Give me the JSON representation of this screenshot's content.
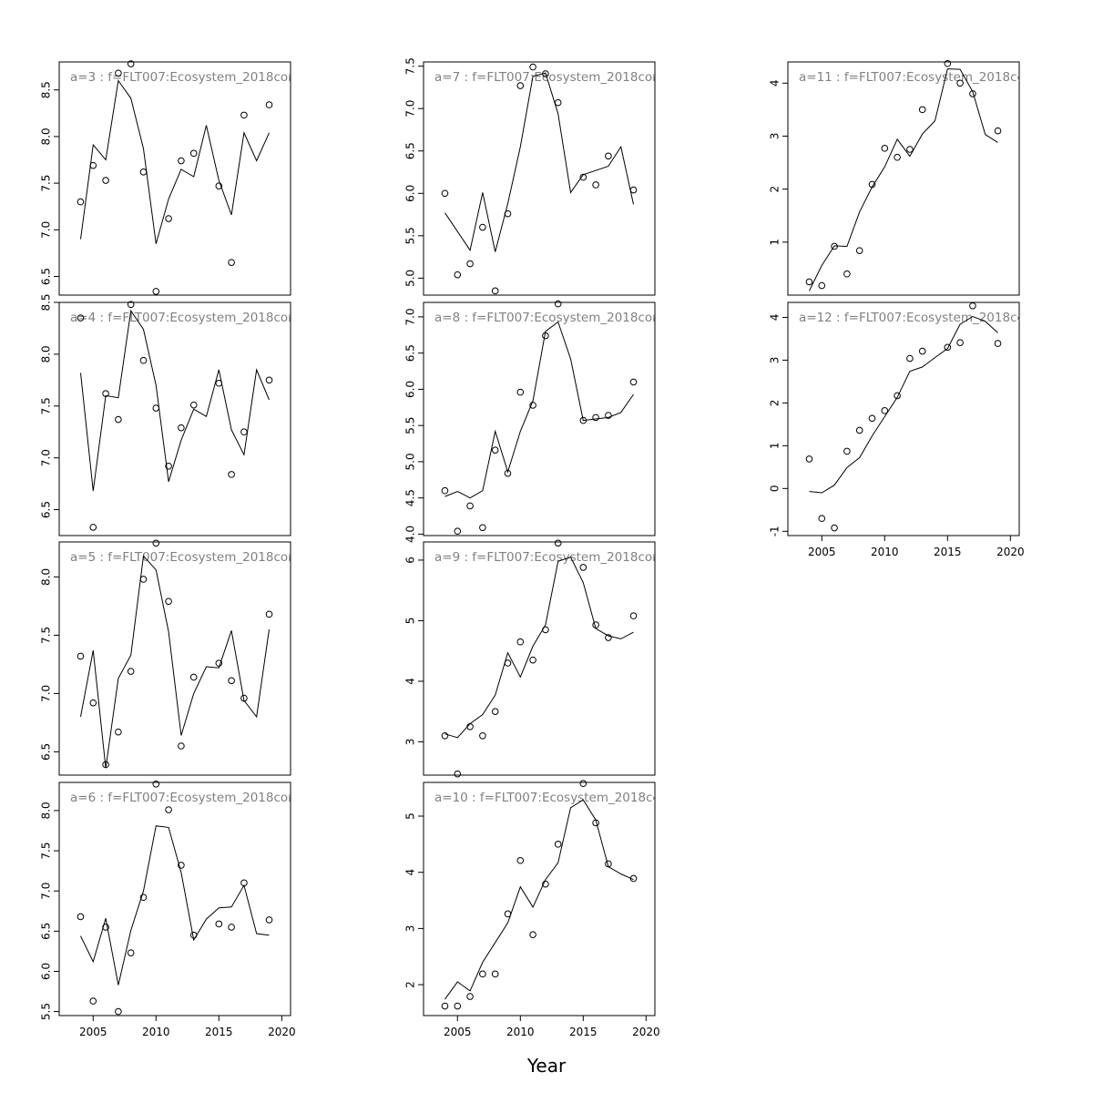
{
  "xlabel": "Year",
  "colors": {
    "axis": "#000000",
    "panel_label": "#808080",
    "line": "#000000",
    "points": "#000000"
  },
  "chart_data": [
    {
      "type": "scatter",
      "title": "a=3 : f=FLT007:Ecosystem_2018cor",
      "ylim": [
        6.3,
        8.8
      ],
      "yticks": [
        6.5,
        7.0,
        7.5,
        8.0,
        8.5
      ],
      "points": [
        [
          2004,
          7.3
        ],
        [
          2005,
          7.69
        ],
        [
          2006,
          7.53
        ],
        [
          2007,
          8.68
        ],
        [
          2008,
          8.78
        ],
        [
          2009,
          7.62
        ],
        [
          2010,
          6.34
        ],
        [
          2011,
          7.12
        ],
        [
          2012,
          7.74
        ],
        [
          2013,
          7.82
        ],
        [
          2015,
          7.47
        ],
        [
          2016,
          6.65
        ],
        [
          2017,
          8.23
        ],
        [
          2019,
          8.34
        ]
      ],
      "line": [
        [
          2004,
          6.9
        ],
        [
          2005,
          7.91
        ],
        [
          2006,
          7.75
        ],
        [
          2007,
          8.6
        ],
        [
          2008,
          8.41
        ],
        [
          2009,
          7.87
        ],
        [
          2010,
          6.85
        ],
        [
          2011,
          7.33
        ],
        [
          2012,
          7.65
        ],
        [
          2013,
          7.57
        ],
        [
          2014,
          8.12
        ],
        [
          2015,
          7.53
        ],
        [
          2016,
          7.16
        ],
        [
          2017,
          8.04
        ],
        [
          2018,
          7.74
        ],
        [
          2019,
          8.04
        ]
      ]
    },
    {
      "type": "scatter",
      "title": "a=4 : f=FLT007:Ecosystem_2018cor",
      "ylim": [
        6.25,
        8.5
      ],
      "yticks": [
        6.5,
        7.0,
        7.5,
        8.0,
        8.5
      ],
      "points": [
        [
          2004,
          8.35
        ],
        [
          2005,
          6.33
        ],
        [
          2006,
          7.62
        ],
        [
          2007,
          7.37
        ],
        [
          2008,
          8.48
        ],
        [
          2009,
          7.94
        ],
        [
          2010,
          7.48
        ],
        [
          2011,
          6.92
        ],
        [
          2012,
          7.29
        ],
        [
          2013,
          7.51
        ],
        [
          2015,
          7.72
        ],
        [
          2016,
          6.84
        ],
        [
          2017,
          7.25
        ],
        [
          2019,
          7.75
        ]
      ],
      "line": [
        [
          2004,
          7.82
        ],
        [
          2005,
          6.68
        ],
        [
          2006,
          7.6
        ],
        [
          2007,
          7.58
        ],
        [
          2008,
          8.42
        ],
        [
          2009,
          8.24
        ],
        [
          2010,
          7.7
        ],
        [
          2011,
          6.77
        ],
        [
          2012,
          7.17
        ],
        [
          2013,
          7.47
        ],
        [
          2014,
          7.4
        ],
        [
          2015,
          7.85
        ],
        [
          2016,
          7.27
        ],
        [
          2017,
          7.03
        ],
        [
          2018,
          7.85
        ],
        [
          2019,
          7.56
        ]
      ]
    },
    {
      "type": "scatter",
      "title": "a=5 : f=FLT007:Ecosystem_2018cor",
      "ylim": [
        6.3,
        8.3
      ],
      "yticks": [
        6.5,
        7.0,
        7.5,
        8.0
      ],
      "points": [
        [
          2004,
          7.32
        ],
        [
          2005,
          6.92
        ],
        [
          2006,
          6.39
        ],
        [
          2007,
          6.67
        ],
        [
          2008,
          7.19
        ],
        [
          2009,
          7.98
        ],
        [
          2010,
          8.29
        ],
        [
          2011,
          7.79
        ],
        [
          2012,
          6.55
        ],
        [
          2013,
          7.14
        ],
        [
          2015,
          7.26
        ],
        [
          2016,
          7.11
        ],
        [
          2017,
          6.96
        ],
        [
          2019,
          7.68
        ]
      ],
      "line": [
        [
          2004,
          6.8
        ],
        [
          2005,
          7.37
        ],
        [
          2006,
          6.36
        ],
        [
          2007,
          7.13
        ],
        [
          2008,
          7.33
        ],
        [
          2009,
          8.18
        ],
        [
          2010,
          8.06
        ],
        [
          2011,
          7.53
        ],
        [
          2012,
          6.64
        ],
        [
          2013,
          7.0
        ],
        [
          2014,
          7.23
        ],
        [
          2015,
          7.22
        ],
        [
          2016,
          7.54
        ],
        [
          2017,
          6.94
        ],
        [
          2018,
          6.8
        ],
        [
          2019,
          7.55
        ]
      ]
    },
    {
      "type": "scatter",
      "title": "a=6 : f=FLT007:Ecosystem_2018cor",
      "ylim": [
        5.45,
        8.35
      ],
      "yticks": [
        5.5,
        6.0,
        6.5,
        7.0,
        7.5,
        8.0
      ],
      "points": [
        [
          2004,
          6.68
        ],
        [
          2005,
          5.63
        ],
        [
          2006,
          6.55
        ],
        [
          2007,
          5.5
        ],
        [
          2008,
          6.23
        ],
        [
          2009,
          6.92
        ],
        [
          2010,
          8.33
        ],
        [
          2011,
          8.01
        ],
        [
          2012,
          7.32
        ],
        [
          2013,
          6.45
        ],
        [
          2015,
          6.59
        ],
        [
          2016,
          6.55
        ],
        [
          2017,
          7.1
        ],
        [
          2019,
          6.64
        ]
      ],
      "line": [
        [
          2004,
          6.44
        ],
        [
          2005,
          6.12
        ],
        [
          2006,
          6.66
        ],
        [
          2007,
          5.83
        ],
        [
          2008,
          6.51
        ],
        [
          2009,
          7.0
        ],
        [
          2010,
          7.81
        ],
        [
          2011,
          7.79
        ],
        [
          2012,
          7.23
        ],
        [
          2013,
          6.39
        ],
        [
          2014,
          6.65
        ],
        [
          2015,
          6.79
        ],
        [
          2016,
          6.8
        ],
        [
          2017,
          7.07
        ],
        [
          2018,
          6.47
        ],
        [
          2019,
          6.45
        ]
      ]
    },
    {
      "type": "scatter",
      "title": "a=7 : f=FLT007:Ecosystem_2018cor",
      "ylim": [
        4.8,
        7.55
      ],
      "yticks": [
        5.0,
        5.5,
        6.0,
        6.5,
        7.0,
        7.5
      ],
      "points": [
        [
          2004,
          6.0
        ],
        [
          2005,
          5.04
        ],
        [
          2006,
          5.17
        ],
        [
          2007,
          5.6
        ],
        [
          2008,
          4.85
        ],
        [
          2009,
          5.76
        ],
        [
          2010,
          7.27
        ],
        [
          2011,
          7.49
        ],
        [
          2012,
          7.41
        ],
        [
          2013,
          7.07
        ],
        [
          2015,
          6.19
        ],
        [
          2016,
          6.1
        ],
        [
          2017,
          6.44
        ],
        [
          2019,
          6.04
        ]
      ],
      "line": [
        [
          2004,
          5.77
        ],
        [
          2005,
          5.55
        ],
        [
          2006,
          5.33
        ],
        [
          2007,
          6.01
        ],
        [
          2008,
          5.31
        ],
        [
          2009,
          5.88
        ],
        [
          2010,
          6.55
        ],
        [
          2011,
          7.38
        ],
        [
          2012,
          7.42
        ],
        [
          2013,
          6.94
        ],
        [
          2014,
          6.01
        ],
        [
          2015,
          6.22
        ],
        [
          2016,
          6.27
        ],
        [
          2017,
          6.32
        ],
        [
          2018,
          6.55
        ],
        [
          2019,
          5.87
        ]
      ]
    },
    {
      "type": "scatter",
      "title": "a=8 : f=FLT007:Ecosystem_2018cor",
      "ylim": [
        3.98,
        7.2
      ],
      "yticks": [
        4.0,
        4.5,
        5.0,
        5.5,
        6.0,
        6.5,
        7.0
      ],
      "points": [
        [
          2004,
          4.6
        ],
        [
          2005,
          4.04
        ],
        [
          2006,
          4.39
        ],
        [
          2007,
          4.09
        ],
        [
          2008,
          5.16
        ],
        [
          2009,
          4.84
        ],
        [
          2010,
          5.96
        ],
        [
          2011,
          5.78
        ],
        [
          2012,
          6.74
        ],
        [
          2013,
          7.18
        ],
        [
          2015,
          5.57
        ],
        [
          2016,
          5.61
        ],
        [
          2017,
          5.64
        ],
        [
          2019,
          6.1
        ]
      ],
      "line": [
        [
          2004,
          4.52
        ],
        [
          2005,
          4.59
        ],
        [
          2006,
          4.5
        ],
        [
          2007,
          4.6
        ],
        [
          2008,
          5.42
        ],
        [
          2009,
          4.86
        ],
        [
          2010,
          5.42
        ],
        [
          2011,
          5.84
        ],
        [
          2012,
          6.8
        ],
        [
          2013,
          6.93
        ],
        [
          2014,
          6.42
        ],
        [
          2015,
          5.57
        ],
        [
          2016,
          5.59
        ],
        [
          2017,
          5.61
        ],
        [
          2018,
          5.68
        ],
        [
          2019,
          5.93
        ]
      ]
    },
    {
      "type": "scatter",
      "title": "a=9 : f=FLT007:Ecosystem_2018cor",
      "ylim": [
        2.45,
        6.3
      ],
      "yticks": [
        3,
        4,
        5,
        6
      ],
      "points": [
        [
          2004,
          3.1
        ],
        [
          2005,
          2.47
        ],
        [
          2006,
          3.25
        ],
        [
          2007,
          3.1
        ],
        [
          2008,
          3.5
        ],
        [
          2009,
          4.3
        ],
        [
          2010,
          4.65
        ],
        [
          2011,
          4.35
        ],
        [
          2012,
          4.85
        ],
        [
          2013,
          6.28
        ],
        [
          2015,
          5.88
        ],
        [
          2016,
          4.93
        ],
        [
          2017,
          4.72
        ],
        [
          2019,
          5.08
        ]
      ],
      "line": [
        [
          2004,
          3.13
        ],
        [
          2005,
          3.07
        ],
        [
          2006,
          3.3
        ],
        [
          2007,
          3.45
        ],
        [
          2008,
          3.77
        ],
        [
          2009,
          4.47
        ],
        [
          2010,
          4.07
        ],
        [
          2011,
          4.58
        ],
        [
          2012,
          4.93
        ],
        [
          2013,
          5.98
        ],
        [
          2014,
          6.05
        ],
        [
          2015,
          5.63
        ],
        [
          2016,
          4.87
        ],
        [
          2017,
          4.75
        ],
        [
          2018,
          4.7
        ],
        [
          2019,
          4.81
        ]
      ]
    },
    {
      "type": "scatter",
      "title": "a=10 : f=FLT007:Ecosystem_2018cor",
      "ylim": [
        1.45,
        5.6
      ],
      "yticks": [
        2,
        3,
        4,
        5
      ],
      "points": [
        [
          2004,
          1.62
        ],
        [
          2005,
          1.62
        ],
        [
          2006,
          1.79
        ],
        [
          2007,
          2.19
        ],
        [
          2008,
          2.19
        ],
        [
          2009,
          3.26
        ],
        [
          2010,
          4.21
        ],
        [
          2011,
          2.89
        ],
        [
          2012,
          3.79
        ],
        [
          2013,
          4.5
        ],
        [
          2015,
          5.58
        ],
        [
          2016,
          4.88
        ],
        [
          2017,
          4.15
        ],
        [
          2019,
          3.89
        ]
      ],
      "line": [
        [
          2004,
          1.74
        ],
        [
          2005,
          2.05
        ],
        [
          2006,
          1.89
        ],
        [
          2007,
          2.4
        ],
        [
          2008,
          2.75
        ],
        [
          2009,
          3.1
        ],
        [
          2010,
          3.74
        ],
        [
          2011,
          3.38
        ],
        [
          2012,
          3.87
        ],
        [
          2013,
          4.17
        ],
        [
          2014,
          5.15
        ],
        [
          2015,
          5.29
        ],
        [
          2016,
          4.93
        ],
        [
          2017,
          4.1
        ],
        [
          2018,
          3.97
        ],
        [
          2019,
          3.87
        ]
      ]
    },
    {
      "type": "scatter",
      "title": "a=11 : f=FLT007:Ecosystem_2018cor",
      "ylim": [
        0,
        4.4
      ],
      "yticks": [
        1,
        2,
        3,
        4
      ],
      "points": [
        [
          2004,
          0.25
        ],
        [
          2005,
          0.18
        ],
        [
          2006,
          0.92
        ],
        [
          2007,
          0.4
        ],
        [
          2008,
          0.84
        ],
        [
          2009,
          2.09
        ],
        [
          2010,
          2.77
        ],
        [
          2011,
          2.6
        ],
        [
          2012,
          2.75
        ],
        [
          2013,
          3.5
        ],
        [
          2015,
          4.37
        ],
        [
          2016,
          4.0
        ],
        [
          2017,
          3.8
        ],
        [
          2019,
          3.1
        ]
      ],
      "line": [
        [
          2004,
          0.08
        ],
        [
          2005,
          0.56
        ],
        [
          2006,
          0.93
        ],
        [
          2007,
          0.92
        ],
        [
          2008,
          1.57
        ],
        [
          2009,
          2.04
        ],
        [
          2010,
          2.42
        ],
        [
          2011,
          2.94
        ],
        [
          2012,
          2.62
        ],
        [
          2013,
          3.04
        ],
        [
          2014,
          3.29
        ],
        [
          2015,
          4.27
        ],
        [
          2016,
          4.26
        ],
        [
          2017,
          3.84
        ],
        [
          2018,
          3.03
        ],
        [
          2019,
          2.88
        ]
      ]
    },
    {
      "type": "scatter",
      "title": "a=12 : f=FLT007:Ecosystem_2018cor",
      "ylim": [
        -1.1,
        4.35
      ],
      "yticks": [
        -1,
        0,
        1,
        2,
        3,
        4
      ],
      "points": [
        [
          2004,
          0.69
        ],
        [
          2005,
          -0.7
        ],
        [
          2006,
          -0.92
        ],
        [
          2007,
          0.87
        ],
        [
          2008,
          1.36
        ],
        [
          2009,
          1.64
        ],
        [
          2010,
          1.82
        ],
        [
          2011,
          2.17
        ],
        [
          2012,
          3.04
        ],
        [
          2013,
          3.21
        ],
        [
          2015,
          3.3
        ],
        [
          2016,
          3.41
        ],
        [
          2017,
          4.27
        ],
        [
          2019,
          3.39
        ]
      ],
      "line": [
        [
          2004,
          -0.07
        ],
        [
          2005,
          -0.1
        ],
        [
          2006,
          0.08
        ],
        [
          2007,
          0.49
        ],
        [
          2008,
          0.72
        ],
        [
          2009,
          1.23
        ],
        [
          2010,
          1.68
        ],
        [
          2011,
          2.13
        ],
        [
          2012,
          2.74
        ],
        [
          2013,
          2.84
        ],
        [
          2014,
          3.06
        ],
        [
          2015,
          3.27
        ],
        [
          2016,
          3.84
        ],
        [
          2017,
          4.02
        ],
        [
          2018,
          3.91
        ],
        [
          2019,
          3.64
        ]
      ]
    }
  ],
  "x_axis": {
    "xlim": [
      2002.3,
      2020.7
    ],
    "ticks": [
      2005,
      2010,
      2015,
      2020
    ]
  }
}
